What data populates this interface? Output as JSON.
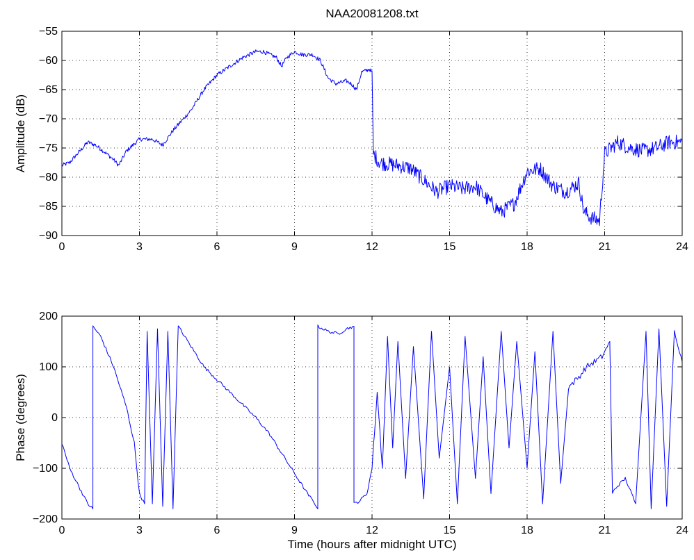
{
  "chart_data": [
    {
      "type": "line",
      "title": "NAA20081208.txt",
      "xlabel": "",
      "ylabel": "Amplitude (dB)",
      "xlim": [
        0,
        24
      ],
      "ylim": [
        -90,
        -55
      ],
      "xticks": [
        "0",
        "3",
        "6",
        "9",
        "12",
        "15",
        "18",
        "21",
        "24"
      ],
      "yticks": [
        "-55",
        "-60",
        "-65",
        "-70",
        "-75",
        "-80",
        "-85",
        "-90"
      ],
      "grid": true,
      "series": [
        {
          "color": "#0000ff",
          "x": [
            0,
            0.3,
            0.6,
            1.0,
            1.3,
            1.6,
            2.0,
            2.2,
            2.5,
            3.0,
            3.5,
            3.9,
            4.3,
            5.0,
            5.5,
            6.0,
            6.5,
            7.0,
            7.5,
            7.8,
            8.3,
            8.5,
            8.7,
            9.0,
            9.3,
            9.7,
            10.0,
            10.3,
            10.6,
            11.0,
            11.2,
            11.4,
            11.6,
            11.9,
            12.0,
            12.05,
            12.3,
            13.0,
            13.5,
            14.0,
            14.5,
            15.0,
            15.5,
            16.0,
            16.5,
            17.0,
            17.5,
            18.0,
            18.5,
            19.0,
            19.5,
            20.0,
            20.2,
            20.5,
            20.8,
            21.0,
            21.5,
            22.0,
            22.5,
            23.0,
            23.5,
            24.0
          ],
          "y": [
            -78,
            -77.5,
            -76,
            -74,
            -74.5,
            -75.5,
            -77,
            -78,
            -75.5,
            -73.5,
            -73.5,
            -74.5,
            -72,
            -68.5,
            -65,
            -62.5,
            -61,
            -59.5,
            -58.5,
            -58.5,
            -59.5,
            -61,
            -59.5,
            -58.5,
            -59,
            -59,
            -60,
            -63,
            -64,
            -63.5,
            -64,
            -65,
            -62,
            -61.5,
            -62,
            -76,
            -77.5,
            -78,
            -78.5,
            -80.5,
            -82.5,
            -81.5,
            -82,
            -81.5,
            -84,
            -86,
            -84.5,
            -79,
            -78.5,
            -81.5,
            -82.5,
            -81,
            -86,
            -87,
            -87.5,
            -76,
            -74,
            -75,
            -75.5,
            -75,
            -74,
            -74
          ]
        }
      ]
    },
    {
      "type": "line",
      "title": "",
      "xlabel": "Time (hours after midnight UTC)",
      "ylabel": "Phase (degrees)",
      "xlim": [
        0,
        24
      ],
      "ylim": [
        -200,
        200
      ],
      "xticks": [
        "0",
        "3",
        "6",
        "9",
        "12",
        "15",
        "18",
        "21",
        "24"
      ],
      "yticks": [
        "200",
        "100",
        "0",
        "-100",
        "-200"
      ],
      "grid": true,
      "series": [
        {
          "color": "#0000ff",
          "x": [
            0,
            0.3,
            0.7,
            1.0,
            1.2,
            1.2,
            1.5,
            2.0,
            2.5,
            2.8,
            3.0,
            3.2,
            3.3,
            3.5,
            3.7,
            3.9,
            4.1,
            4.3,
            4.5,
            5.0,
            5.5,
            6.0,
            6.5,
            7.0,
            7.5,
            8.0,
            8.5,
            9.0,
            9.5,
            9.8,
            9.9,
            9.9,
            10.3,
            10.7,
            11.0,
            11.3,
            11.3,
            11.5,
            11.8,
            12.0,
            12.2,
            12.4,
            12.6,
            12.8,
            13.0,
            13.3,
            13.6,
            14.0,
            14.3,
            14.6,
            15.0,
            15.3,
            15.6,
            16.0,
            16.3,
            16.6,
            17.0,
            17.3,
            17.6,
            18.0,
            18.3,
            18.6,
            19.0,
            19.3,
            19.6,
            20.0,
            20.3,
            20.6,
            20.9,
            21.2,
            21.3,
            21.4,
            21.8,
            22.2,
            22.6,
            22.8,
            23.1,
            23.4,
            23.7,
            24.0
          ],
          "y": [
            -50,
            -100,
            -140,
            -170,
            -180,
            180,
            160,
            100,
            20,
            -50,
            -150,
            -170,
            170,
            -170,
            175,
            -175,
            170,
            -180,
            180,
            140,
            100,
            75,
            50,
            25,
            0,
            -30,
            -70,
            -110,
            -150,
            -170,
            -180,
            180,
            170,
            165,
            175,
            180,
            -170,
            -165,
            -150,
            -100,
            50,
            -100,
            160,
            -60,
            150,
            -120,
            140,
            -160,
            170,
            -80,
            100,
            -170,
            160,
            -120,
            120,
            -150,
            170,
            -60,
            150,
            -100,
            130,
            -170,
            170,
            -130,
            60,
            80,
            100,
            110,
            120,
            150,
            -150,
            -140,
            -120,
            -170,
            170,
            -180,
            175,
            -175,
            170,
            110
          ]
        }
      ]
    }
  ]
}
